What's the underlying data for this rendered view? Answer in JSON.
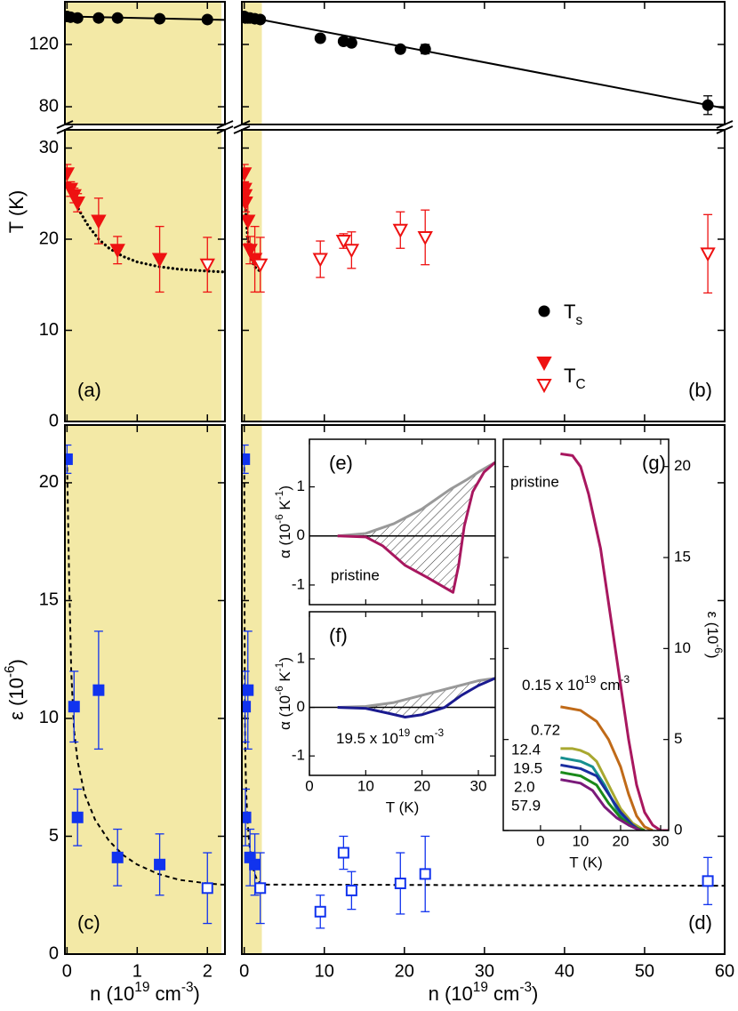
{
  "chart_data": [
    {
      "type": "scatter",
      "ylabel": "T (K)",
      "ylim_upper": [
        68.6,
        147.4
      ],
      "yticks_upper": [
        80,
        120
      ],
      "ylim": [
        0,
        32
      ],
      "yticks": [
        0,
        10,
        20,
        30
      ],
      "panels": [
        {
          "label": "(a)",
          "xlim": [
            -0.03,
            2.25
          ],
          "xticks": [
            0,
            1,
            2
          ]
        },
        {
          "label": "(b)",
          "xlim": [
            -0.3,
            60
          ],
          "xticks": [
            0,
            10,
            20,
            30,
            40,
            50,
            60
          ]
        }
      ],
      "shade": [
        -0.3,
        2.2
      ],
      "shade_color": "#f3e9a6",
      "series": [
        {
          "name": [
            "T",
            {
              "text": "s",
              "script": "sub"
            }
          ],
          "marker": "circle",
          "color": "#000000",
          "axis": "upper",
          "x": [
            0,
            0.05,
            0.15,
            0.45,
            0.72,
            1.32,
            2.0,
            9.5,
            12.4,
            13.4,
            19.5,
            22.6,
            57.9
          ],
          "values": [
            138,
            137.5,
            137,
            137,
            137,
            136.5,
            136,
            124,
            122,
            121,
            117,
            117,
            81
          ],
          "errors": [
            null,
            null,
            null,
            null,
            null,
            null,
            null,
            null,
            null,
            null,
            null,
            3,
            6
          ]
        },
        {
          "name": [
            "T",
            {
              "text": "C",
              "script": "sub"
            }
          ],
          "marker": "triangle",
          "color": "#ee1111",
          "x": [
            0,
            0.05,
            0.1,
            0.15,
            0.45,
            0.72,
            1.32
          ],
          "values": [
            27.2,
            25.5,
            24.8,
            24,
            22,
            18.8,
            17.8
          ],
          "errors": [
            1,
            0.8,
            0.8,
            1,
            2.5,
            1.5,
            3.6
          ]
        },
        {
          "marker": "open-triangle",
          "color": "#ee1111",
          "x": [
            2.0,
            9.5,
            12.4,
            13.4,
            19.5,
            22.6,
            57.9
          ],
          "values": [
            17.2,
            17.8,
            19.8,
            18.8,
            21,
            20.2,
            18.4
          ],
          "errors": [
            3,
            2,
            0.8,
            2,
            2,
            3,
            4.3
          ]
        }
      ],
      "fits": [
        {
          "style": "solid",
          "axis": "upper",
          "x": [
            0,
            60
          ],
          "values": [
            138,
            79
          ]
        },
        {
          "style": "dotted",
          "x": [
            0.1,
            0.2,
            0.3,
            0.45,
            0.6,
            0.8,
            1,
            1.3,
            1.6,
            2,
            2.25
          ],
          "values": [
            24.2,
            22.8,
            21.5,
            20,
            19,
            18.1,
            17.5,
            17,
            16.7,
            16.5,
            16.4
          ]
        }
      ]
    },
    {
      "type": "scatter",
      "ylabel": [
        "ε (10",
        {
          "text": "-6",
          "script": "sup"
        },
        ")"
      ],
      "xlabel": [
        "n (10",
        {
          "text": "19",
          "script": "sup"
        },
        " cm",
        {
          "text": "-3",
          "script": "sup"
        },
        ")"
      ],
      "ylim": [
        0,
        22.45
      ],
      "yticks": [
        0,
        5,
        10,
        15,
        20
      ],
      "panels": [
        {
          "label": "(c)",
          "xlim": [
            -0.03,
            2.25
          ],
          "xticks": [
            0,
            1,
            2
          ]
        },
        {
          "label": "(d)",
          "xlim": [
            -0.3,
            60
          ],
          "xticks": [
            0,
            10,
            20,
            30,
            40,
            50,
            60
          ]
        }
      ],
      "shade": [
        -0.3,
        2.2
      ],
      "shade_color": "#f3e9a6",
      "series": [
        {
          "marker": "square",
          "color": "#1133ee",
          "x": [
            0,
            0.1,
            0.15,
            0.45,
            0.72,
            1.32
          ],
          "values": [
            21,
            10.5,
            5.8,
            11.2,
            4.1,
            3.8
          ],
          "errors": [
            0.6,
            1.5,
            1.2,
            2.5,
            1.2,
            1.3
          ]
        },
        {
          "marker": "open-square",
          "color": "#1133ee",
          "x": [
            2.0,
            9.5,
            12.4,
            13.4,
            19.5,
            22.6,
            57.9
          ],
          "values": [
            2.8,
            1.8,
            4.3,
            2.7,
            3.0,
            3.4,
            3.1
          ],
          "errors": [
            1.5,
            0.7,
            0.7,
            0.8,
            1.3,
            1.6,
            1.0
          ]
        }
      ],
      "fits": [
        {
          "style": "dashed",
          "x": [
            0,
            0.03,
            0.06,
            0.1,
            0.15,
            0.25,
            0.4,
            0.6,
            0.8,
            1,
            1.3,
            1.6,
            2,
            2.2,
            60
          ],
          "values": [
            21,
            16,
            12,
            9.5,
            8.2,
            6.8,
            5.7,
            4.8,
            4.2,
            3.8,
            3.4,
            3.15,
            3.0,
            2.95,
            2.9
          ]
        }
      ]
    },
    {
      "type": "line",
      "label": "(e)",
      "ylabel": [
        "α (10",
        {
          "text": "-6",
          "script": "sup"
        },
        " K",
        {
          "text": "-1",
          "script": "sup"
        },
        ")"
      ],
      "xlim": [
        0,
        33
      ],
      "xticks": [
        0,
        10,
        20,
        30
      ],
      "ylim": [
        -1.4,
        1.97
      ],
      "yticks": [
        -1,
        0,
        1
      ],
      "zero_line": true,
      "hatch": true,
      "series": [
        {
          "color": "#999999",
          "x": [
            5,
            10,
            15,
            20,
            25,
            28,
            30,
            33
          ],
          "values": [
            0,
            0.05,
            0.25,
            0.55,
            0.95,
            1.15,
            1.3,
            1.5
          ]
        },
        {
          "name": "pristine",
          "color": "#a8175f",
          "x": [
            5,
            10,
            13,
            17,
            21,
            24,
            25.5,
            26.5,
            27.5,
            29,
            31,
            33
          ],
          "values": [
            0,
            -0.02,
            -0.2,
            -0.6,
            -0.85,
            -1.05,
            -1.15,
            -0.6,
            0.2,
            0.9,
            1.3,
            1.5
          ]
        }
      ]
    },
    {
      "type": "line",
      "label": "(f)",
      "ylabel": [
        "α (10",
        {
          "text": "-6",
          "script": "sup"
        },
        " K",
        {
          "text": "-1",
          "script": "sup"
        },
        ")"
      ],
      "xlabel": "T (K)",
      "xlim": [
        0,
        33
      ],
      "xticks": [
        0,
        10,
        20,
        30
      ],
      "ylim": [
        -1.4,
        1.97
      ],
      "yticks": [
        -1,
        0,
        1
      ],
      "zero_line": true,
      "hatch": true,
      "series": [
        {
          "color": "#999999",
          "x": [
            5,
            10,
            15,
            20,
            25,
            30,
            33
          ],
          "values": [
            0,
            0.02,
            0.1,
            0.25,
            0.4,
            0.55,
            0.6
          ]
        },
        {
          "name": [
            "19.5 x 10",
            {
              "text": "19",
              "script": "sup"
            },
            " cm",
            {
              "text": "-3",
              "script": "sup"
            }
          ],
          "color": "#1a1a8f",
          "x": [
            5,
            10,
            14,
            17,
            20,
            24,
            27,
            30,
            33
          ],
          "values": [
            0,
            -0.02,
            -0.12,
            -0.2,
            -0.15,
            0,
            0.25,
            0.45,
            0.6
          ]
        }
      ]
    },
    {
      "type": "line",
      "label": "(g)",
      "ylabel": [
        "ε (10",
        {
          "text": "-6",
          "script": "sup"
        },
        ")"
      ],
      "yaxis_side": "right",
      "xlabel": "T (K)",
      "xlim": [
        -9.3,
        32
      ],
      "xticks": [
        0,
        10,
        20,
        30
      ],
      "ylim": [
        0,
        21.5
      ],
      "yticks": [
        0,
        5,
        10,
        15,
        20
      ],
      "series": [
        {
          "name": "pristine",
          "color": "#a8175f",
          "x": [
            5,
            8,
            10,
            12,
            15,
            18,
            20,
            22,
            24,
            26,
            28,
            30,
            32
          ],
          "values": [
            20.7,
            20.6,
            20,
            18.5,
            15.5,
            11,
            8,
            5,
            2.5,
            1,
            0.3,
            0,
            0
          ]
        },
        {
          "name": [
            "0.15 x 10",
            {
              "text": "19",
              "script": "sup"
            },
            " cm",
            {
              "text": "-3",
              "script": "sup"
            }
          ],
          "color": "#c06a18",
          "x": [
            5,
            10,
            14,
            17,
            20,
            22,
            24,
            26,
            28
          ],
          "values": [
            6.8,
            6.6,
            6,
            5,
            3.5,
            2,
            0.8,
            0.2,
            0
          ]
        },
        {
          "name": "0.72",
          "color": "#a8a830",
          "x": [
            5,
            8,
            10,
            12,
            14,
            17,
            20,
            23,
            26
          ],
          "values": [
            4.5,
            4.5,
            4.4,
            4.2,
            3.8,
            2.5,
            1.2,
            0.4,
            0
          ]
        },
        {
          "name": "12.4",
          "color": "#178f8f",
          "x": [
            5,
            10,
            13,
            16,
            19,
            22,
            25
          ],
          "values": [
            4,
            3.8,
            3.5,
            2.5,
            1.2,
            0.3,
            0
          ]
        },
        {
          "name": "19.5",
          "color": "#1a2ea0",
          "x": [
            5,
            10,
            14,
            17,
            20,
            23,
            25
          ],
          "values": [
            3.6,
            3.4,
            3,
            2,
            1,
            0.3,
            0
          ]
        },
        {
          "name": "2.0",
          "color": "#1a8a1a",
          "x": [
            5,
            10,
            14,
            17,
            20,
            23,
            26
          ],
          "values": [
            3.2,
            3,
            2.5,
            1.5,
            0.7,
            0.2,
            0
          ]
        },
        {
          "name": "57.9",
          "color": "#7a1a7a",
          "x": [
            5,
            10,
            13,
            16,
            19,
            22,
            25
          ],
          "values": [
            2.8,
            2.6,
            2.2,
            1.3,
            0.7,
            0.3,
            0
          ]
        }
      ]
    }
  ]
}
